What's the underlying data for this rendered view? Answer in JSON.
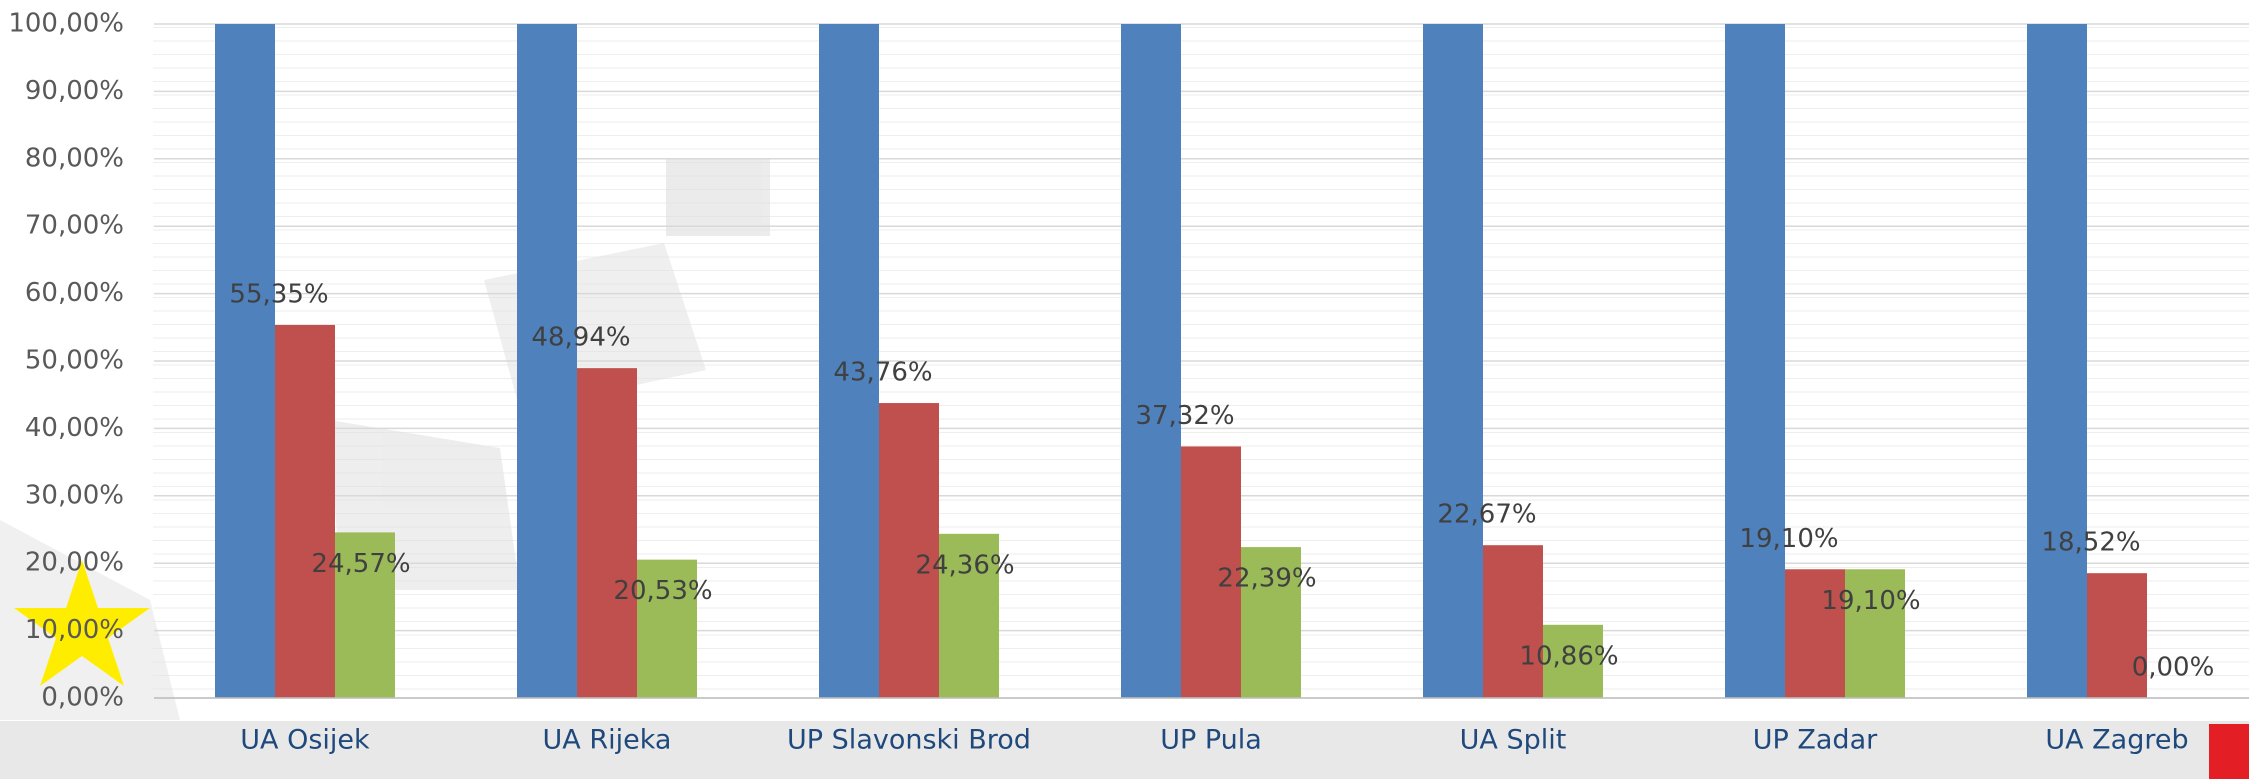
{
  "chart_data": {
    "type": "bar",
    "categories": [
      "UA Osijek",
      "UA Rijeka",
      "UP Slavonski Brod",
      "UP Pula",
      "UA Split",
      "UP Zadar",
      "UA Zagreb"
    ],
    "series": [
      {
        "color": "#4f81bd",
        "values": [
          100,
          100,
          100,
          100,
          100,
          100,
          100
        ]
      },
      {
        "color": "#c0504d",
        "values": [
          55.35,
          48.94,
          43.76,
          37.32,
          22.67,
          19.1,
          18.52
        ],
        "value_labels": [
          "55,35%",
          "48,94%",
          "43,76%",
          "37,32%",
          "22,67%",
          "19,10%",
          "18,52%"
        ]
      },
      {
        "color": "#9bbb59",
        "values": [
          24.57,
          20.53,
          24.36,
          22.39,
          10.86,
          19.1,
          0
        ],
        "value_labels": [
          "24,57%",
          "20,53%",
          "24,36%",
          "22,39%",
          "10,86%",
          "19,10%",
          "0,00%"
        ]
      }
    ],
    "ylim": [
      0,
      100
    ],
    "yticks": [
      {
        "value": 0,
        "label": "0,00%"
      },
      {
        "value": 10,
        "label": "10,00%"
      },
      {
        "value": 20,
        "label": "20,00%"
      },
      {
        "value": 30,
        "label": "30,00%"
      },
      {
        "value": 40,
        "label": "40,00%"
      },
      {
        "value": 50,
        "label": "50,00%"
      },
      {
        "value": 60,
        "label": "60,00%"
      },
      {
        "value": 70,
        "label": "70,00%"
      },
      {
        "value": 80,
        "label": "80,00%"
      },
      {
        "value": 90,
        "label": "90,00%"
      },
      {
        "value": 100,
        "label": "100,00%"
      }
    ],
    "grid": true
  }
}
